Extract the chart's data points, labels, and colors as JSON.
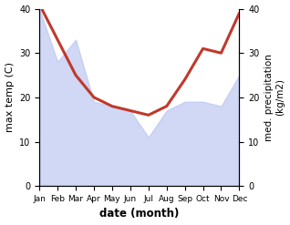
{
  "months": [
    "Jan",
    "Feb",
    "Mar",
    "Apr",
    "May",
    "Jun",
    "Jul",
    "Aug",
    "Sep",
    "Oct",
    "Nov",
    "Dec"
  ],
  "max_temp": [
    40,
    28,
    33,
    19,
    18,
    17,
    11,
    17,
    19,
    19,
    18,
    25
  ],
  "precipitation": [
    41,
    33,
    25,
    20,
    18,
    17,
    16,
    18,
    24,
    31,
    30,
    39
  ],
  "line_color": "#c0392b",
  "fill_color": "#b8c4f0",
  "fill_alpha": 0.65,
  "left_ylim": [
    0,
    40
  ],
  "right_ylim": [
    0,
    40
  ],
  "left_yticks": [
    0,
    10,
    20,
    30,
    40
  ],
  "right_yticks": [
    0,
    10,
    20,
    30,
    40
  ],
  "xlabel": "date (month)",
  "ylabel_left": "max temp (C)",
  "ylabel_right": "med. precipitation\n(kg/m2)",
  "bg_color": "#ffffff"
}
